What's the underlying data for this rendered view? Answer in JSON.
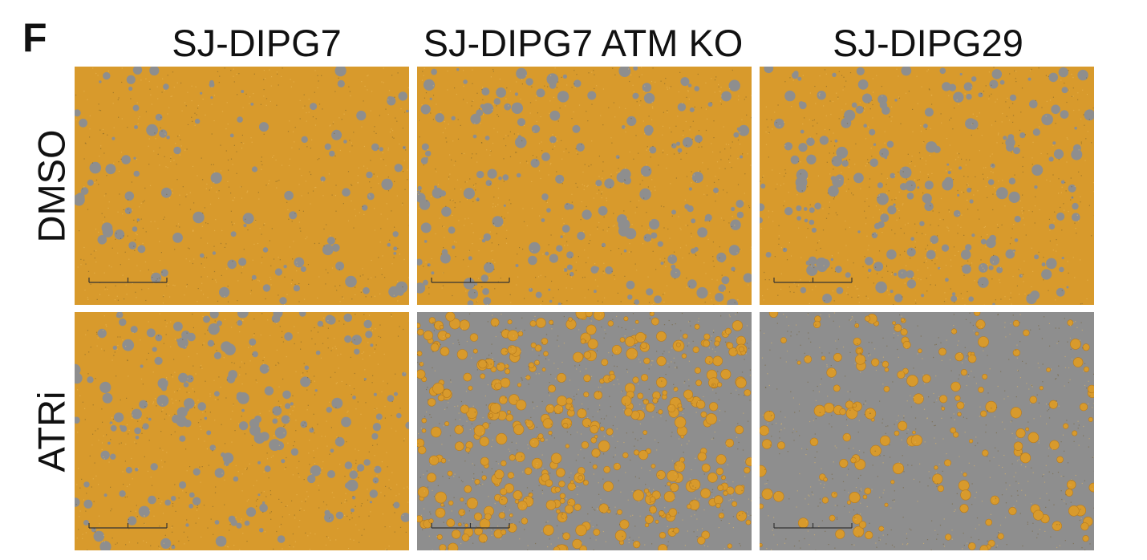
{
  "figure": {
    "panel_letter": "F",
    "columns": [
      "SJ-DIPG7",
      "SJ-DIPG7 ATM KO",
      "SJ-DIPG29"
    ],
    "rows": [
      "DMSO",
      "ATRi"
    ],
    "colors": {
      "cell_overlay": "#d89a2c",
      "background": "#8e8e8e"
    },
    "panels": [
      {
        "row": "DMSO",
        "column": "SJ-DIPG7",
        "confluence_level": 0.88
      },
      {
        "row": "DMSO",
        "column": "SJ-DIPG7 ATM KO",
        "confluence_level": 0.78
      },
      {
        "row": "DMSO",
        "column": "SJ-DIPG29",
        "confluence_level": 0.76
      },
      {
        "row": "ATRi",
        "column": "SJ-DIPG7",
        "confluence_level": 0.78
      },
      {
        "row": "ATRi",
        "column": "SJ-DIPG7 ATM KO",
        "confluence_level": 0.3
      },
      {
        "row": "ATRi",
        "column": "SJ-DIPG29",
        "confluence_level": 0.12
      }
    ]
  }
}
